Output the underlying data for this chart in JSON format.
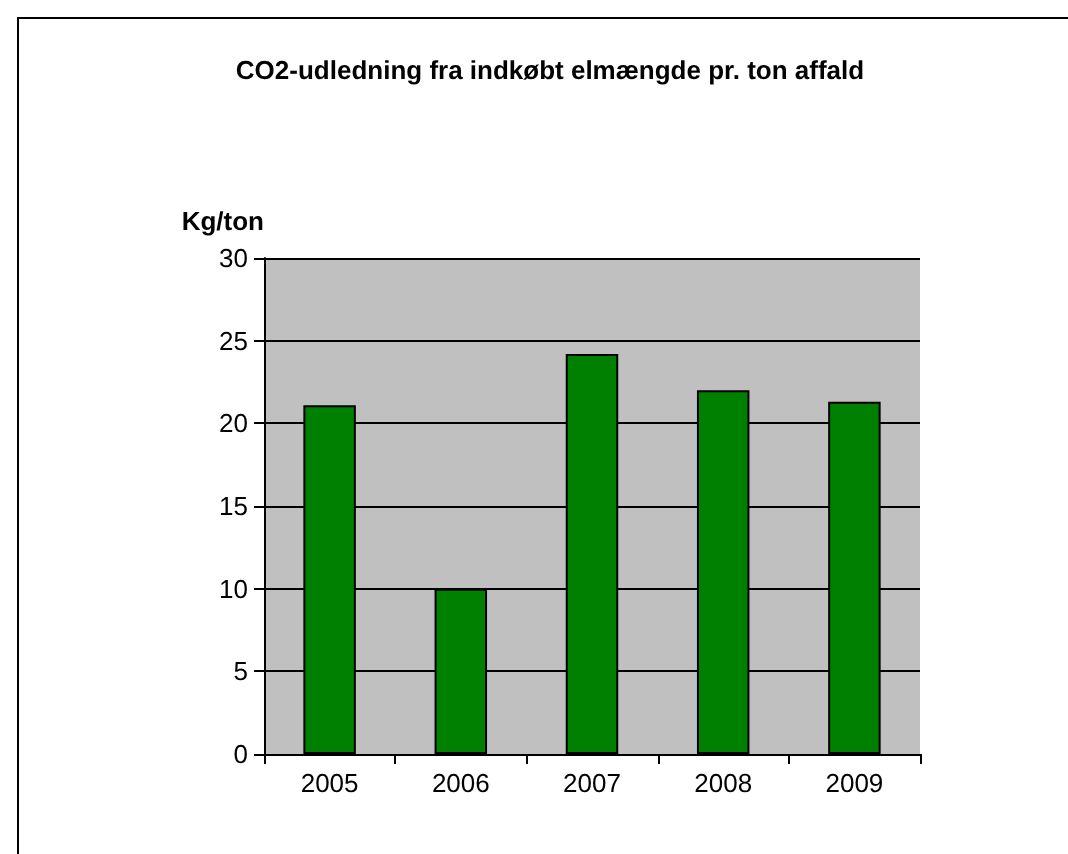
{
  "chart_data": {
    "type": "bar",
    "title": "CO2-udledning fra indkøbt elmængde pr. ton affald",
    "ylabel": "Kg/ton",
    "categories": [
      "2005",
      "2006",
      "2007",
      "2008",
      "2009"
    ],
    "values": [
      21.1,
      10,
      24.2,
      22,
      21.3
    ],
    "color": "#008000",
    "ylim": [
      0,
      30
    ],
    "yticks": [
      0,
      5,
      10,
      15,
      20,
      25,
      30
    ],
    "grid": "y"
  }
}
